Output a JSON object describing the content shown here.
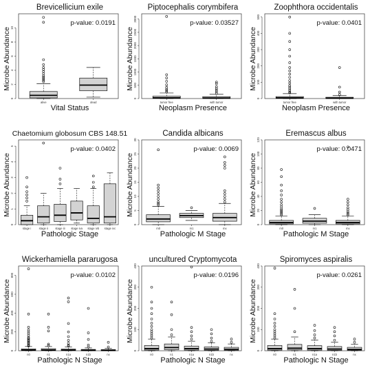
{
  "figure": {
    "y_axis_label": "Microbe Abundance"
  },
  "chart_data": [
    {
      "type": "boxplot",
      "title": "Brevicellicium exile",
      "xlabel": "Vital Status",
      "ylabel": "Microbe Abundance",
      "pvalue": "p-value: 0.0191",
      "ylim": [
        0,
        12
      ],
      "yticks": [
        "0",
        "2",
        "4",
        "6",
        "8",
        "10"
      ],
      "box_fill": "#d3d3d3",
      "categories": [
        "alive",
        "dead"
      ],
      "boxes": [
        {
          "q1": 0.1,
          "median": 0.45,
          "q3": 1.0,
          "whisker_low": 0,
          "whisker_high": 2.1,
          "outliers": [
            2.4,
            2.6,
            2.8,
            3.0,
            3.2,
            3.5,
            3.8,
            4.1,
            4.4,
            4.8,
            5.5,
            10.8,
            11.5
          ]
        },
        {
          "q1": 1.1,
          "median": 1.9,
          "q3": 2.9,
          "whisker_low": 0.2,
          "whisker_high": 4.4,
          "outliers": []
        }
      ]
    },
    {
      "type": "boxplot",
      "title": "Piptocephalis corymbifera",
      "xlabel": "Neoplasm Presence",
      "ylabel": "Microbe Abundance",
      "pvalue": "p-value: 0.03527",
      "ylim": [
        0,
        3200
      ],
      "yticks": [
        "0",
        "500",
        "1000",
        "1500",
        "2000",
        "2500",
        "3000"
      ],
      "box_fill": "#d3d3d3",
      "categories": [
        "tumor free",
        "with tumor"
      ],
      "boxes": [
        {
          "q1": 5,
          "median": 30,
          "q3": 90,
          "whisker_low": 0,
          "whisker_high": 210,
          "outliers": [
            250,
            300,
            350,
            420,
            520,
            650,
            780,
            900,
            3100
          ]
        },
        {
          "q1": 3,
          "median": 20,
          "q3": 70,
          "whisker_low": 0,
          "whisker_high": 160,
          "outliers": [
            200,
            260,
            320,
            380,
            450,
            560,
            620
          ]
        }
      ]
    },
    {
      "type": "boxplot",
      "title": "Zoophthora occidentalis",
      "xlabel": "Neoplasm Presence",
      "ylabel": "Microbe Abundance",
      "pvalue": "p-value: 0.0401",
      "ylim": [
        0,
        520
      ],
      "yticks": [
        "0",
        "100",
        "200",
        "300",
        "400",
        "500"
      ],
      "box_fill": "#d3d3d3",
      "categories": [
        "tumor free",
        "with tumor"
      ],
      "boxes": [
        {
          "q1": 1,
          "median": 4,
          "q3": 12,
          "whisker_low": 0,
          "whisker_high": 30,
          "outliers": [
            35,
            40,
            50,
            60,
            70,
            80,
            95,
            110,
            130,
            150,
            170,
            190,
            220,
            260,
            300,
            350,
            400,
            500
          ]
        },
        {
          "q1": 0.5,
          "median": 2,
          "q3": 8,
          "whisker_low": 0,
          "whisker_high": 18,
          "outliers": [
            25,
            40,
            70,
            190
          ]
        }
      ]
    },
    {
      "type": "boxplot",
      "title": "Chaetomium globosum CBS 148.51",
      "xlabel": "Pathologic Stage",
      "ylabel": "Microbe Abundance",
      "pvalue": "p-value: 0.0402",
      "ylim": [
        0,
        5.4
      ],
      "yticks": [
        "0",
        "1",
        "2",
        "3",
        "4",
        "5"
      ],
      "box_fill": "#d3d3d3",
      "categories": [
        "stage i",
        "stage ii",
        "stage iii",
        "stage iva",
        "stage ivb",
        "stage ivc"
      ],
      "boxes": [
        {
          "q1": 0,
          "median": 0.25,
          "q3": 0.6,
          "whisker_low": 0,
          "whisker_high": 1.2,
          "outliers": [
            1.5,
            1.7,
            1.9,
            2.1,
            2.4,
            3.0
          ]
        },
        {
          "q1": 0.1,
          "median": 0.5,
          "q3": 1.2,
          "whisker_low": 0,
          "whisker_high": 2.0,
          "outliers": [
            5.2
          ]
        },
        {
          "q1": 0.2,
          "median": 0.6,
          "q3": 1.3,
          "whisker_low": 0,
          "whisker_high": 2.3,
          "outliers": [
            2.6,
            2.9,
            3.6
          ]
        },
        {
          "q1": 0.3,
          "median": 0.75,
          "q3": 1.5,
          "whisker_low": 0.1,
          "whisker_high": 2.3,
          "outliers": []
        },
        {
          "q1": 0.1,
          "median": 0.4,
          "q3": 1.2,
          "whisker_low": 0,
          "whisker_high": 2.3,
          "outliers": [
            2.4,
            2.7,
            3.1
          ]
        },
        {
          "q1": 0.1,
          "median": 0.5,
          "q3": 2.6,
          "whisker_low": 0,
          "whisker_high": 3.3,
          "outliers": []
        }
      ]
    },
    {
      "type": "boxplot",
      "title": "Candida albicans",
      "xlabel": "Pathologic M Stage",
      "ylabel": "Microbe Abundance",
      "pvalue": "p-value: 0.0069",
      "ylim": [
        0,
        30
      ],
      "yticks": [
        "0",
        "5",
        "10",
        "15",
        "20",
        "25",
        "30"
      ],
      "box_fill": "#d3d3d3",
      "categories": [
        "m0",
        "m1",
        "mx"
      ],
      "boxes": [
        {
          "q1": 1,
          "median": 2,
          "q3": 3.5,
          "whisker_low": 0,
          "whisker_high": 6.5,
          "outliers": [
            7,
            7.5,
            8,
            9,
            10,
            11,
            12,
            13,
            14,
            26.5
          ]
        },
        {
          "q1": 2.5,
          "median": 3.2,
          "q3": 4.0,
          "whisker_low": 1.5,
          "whisker_high": 5.0,
          "outliers": [
            6
          ]
        },
        {
          "q1": 1.2,
          "median": 2.5,
          "q3": 4.0,
          "whisker_low": 0,
          "whisker_high": 7.5,
          "outliers": [
            8,
            9,
            10,
            11,
            12,
            20,
            21,
            22,
            24
          ]
        }
      ]
    },
    {
      "type": "boxplot",
      "title": "Eremascus albus",
      "xlabel": "Pathologic M Stage",
      "ylabel": "Microbe Abundance",
      "pvalue": "p-value: 0.0471",
      "ylim": [
        0,
        120
      ],
      "yticks": [
        "0",
        "20",
        "40",
        "60",
        "80",
        "100",
        "120"
      ],
      "box_fill": "#d3d3d3",
      "categories": [
        "m0",
        "m1",
        "mx"
      ],
      "boxes": [
        {
          "q1": 1,
          "median": 3,
          "q3": 6,
          "whisker_low": 0,
          "whisker_high": 12,
          "outliers": [
            14,
            16,
            18,
            20,
            22,
            25,
            28,
            32,
            36,
            42,
            48,
            56,
            68,
            78
          ]
        },
        {
          "q1": 2,
          "median": 5,
          "q3": 9,
          "whisker_low": 0,
          "whisker_high": 14,
          "outliers": [
            23
          ]
        },
        {
          "q1": 1,
          "median": 3,
          "q3": 6,
          "whisker_low": 0,
          "whisker_high": 12,
          "outliers": [
            14,
            16,
            18,
            21,
            24,
            28,
            32,
            36,
            110
          ]
        }
      ]
    },
    {
      "type": "boxplot",
      "title": "Wickerhamiella pararugosa",
      "xlabel": "Pathologic N Stage",
      "ylabel": "Microbe Abundance",
      "pvalue": "p-value: 0.0102",
      "ylim": [
        0,
        900
      ],
      "yticks": [
        "0",
        "200",
        "400",
        "600",
        "800"
      ],
      "box_fill": "#d3d3d3",
      "categories": [
        "n0",
        "n1",
        "n1a",
        "n1b",
        "nx"
      ],
      "boxes": [
        {
          "q1": 2,
          "median": 8,
          "q3": 20,
          "whisker_low": 0,
          "whisker_high": 45,
          "outliers": [
            50,
            60,
            70,
            80,
            90,
            100,
            110,
            120,
            130,
            140,
            160,
            180,
            200,
            220,
            250,
            390,
            870
          ]
        },
        {
          "q1": 2,
          "median": 8,
          "q3": 22,
          "whisker_low": 0,
          "whisker_high": 45,
          "outliers": [
            55,
            70,
            210,
            250,
            390
          ]
        },
        {
          "q1": 2,
          "median": 7,
          "q3": 18,
          "whisker_low": 0,
          "whisker_high": 40,
          "outliers": [
            50,
            60,
            80,
            110,
            150,
            200,
            290,
            520,
            560
          ]
        },
        {
          "q1": 1,
          "median": 5,
          "q3": 14,
          "whisker_low": 0,
          "whisker_high": 30,
          "outliers": [
            40,
            60,
            120,
            190,
            450
          ]
        },
        {
          "q1": 1,
          "median": 4,
          "q3": 12,
          "whisker_low": 0,
          "whisker_high": 25,
          "outliers": [
            40,
            90
          ]
        }
      ]
    },
    {
      "type": "boxplot",
      "title": "uncultured Cryptomycota",
      "xlabel": "Pathologic N Stage",
      "ylabel": "Microbe Abundance",
      "pvalue": "p-value: 0.0196",
      "ylim": [
        0,
        400
      ],
      "yticks": [
        "0",
        "100",
        "200",
        "300",
        "400"
      ],
      "box_fill": "#d3d3d3",
      "categories": [
        "n0",
        "n1",
        "n1a",
        "n1b",
        "nx"
      ],
      "boxes": [
        {
          "q1": 3,
          "median": 10,
          "q3": 25,
          "whisker_low": 0,
          "whisker_high": 55,
          "outliers": [
            60,
            70,
            80,
            90,
            100,
            115,
            130,
            150,
            175,
            200,
            230,
            300
          ]
        },
        {
          "q1": 5,
          "median": 15,
          "q3": 32,
          "whisker_low": 0,
          "whisker_high": 65,
          "outliers": [
            75,
            100,
            170,
            230
          ]
        },
        {
          "q1": 3,
          "median": 10,
          "q3": 22,
          "whisker_low": 0,
          "whisker_high": 45,
          "outliers": [
            55,
            70,
            90,
            110,
            395
          ]
        },
        {
          "q1": 2,
          "median": 8,
          "q3": 18,
          "whisker_low": 0,
          "whisker_high": 38,
          "outliers": [
            45,
            60,
            80,
            100
          ]
        },
        {
          "q1": 2,
          "median": 7,
          "q3": 16,
          "whisker_low": 0,
          "whisker_high": 32,
          "outliers": [
            40,
            55
          ]
        }
      ]
    },
    {
      "type": "boxplot",
      "title": "Spiromyces aspiralis",
      "xlabel": "Pathologic N Stage",
      "ylabel": "Microbe Abundance",
      "pvalue": "p-value: 0.0261",
      "ylim": [
        0,
        400
      ],
      "yticks": [
        "0",
        "100",
        "200",
        "300",
        "400"
      ],
      "box_fill": "#d3d3d3",
      "categories": [
        "n0",
        "n1",
        "n1a",
        "n1b",
        "nx"
      ],
      "boxes": [
        {
          "q1": 3,
          "median": 10,
          "q3": 25,
          "whisker_low": 0,
          "whisker_high": 55,
          "outliers": [
            60,
            70,
            80,
            90,
            100,
            115,
            130,
            150,
            175,
            390
          ]
        },
        {
          "q1": 4,
          "median": 12,
          "q3": 30,
          "whisker_low": 0,
          "whisker_high": 65,
          "outliers": [
            90,
            200,
            290
          ]
        },
        {
          "q1": 3,
          "median": 10,
          "q3": 24,
          "whisker_low": 0,
          "whisker_high": 50,
          "outliers": [
            60,
            75,
            95,
            120
          ]
        },
        {
          "q1": 2,
          "median": 8,
          "q3": 20,
          "whisker_low": 0,
          "whisker_high": 40,
          "outliers": [
            50,
            70,
            90,
            110
          ]
        },
        {
          "q1": 2,
          "median": 6,
          "q3": 16,
          "whisker_low": 0,
          "whisker_high": 30,
          "outliers": [
            40,
            55
          ]
        }
      ]
    }
  ]
}
